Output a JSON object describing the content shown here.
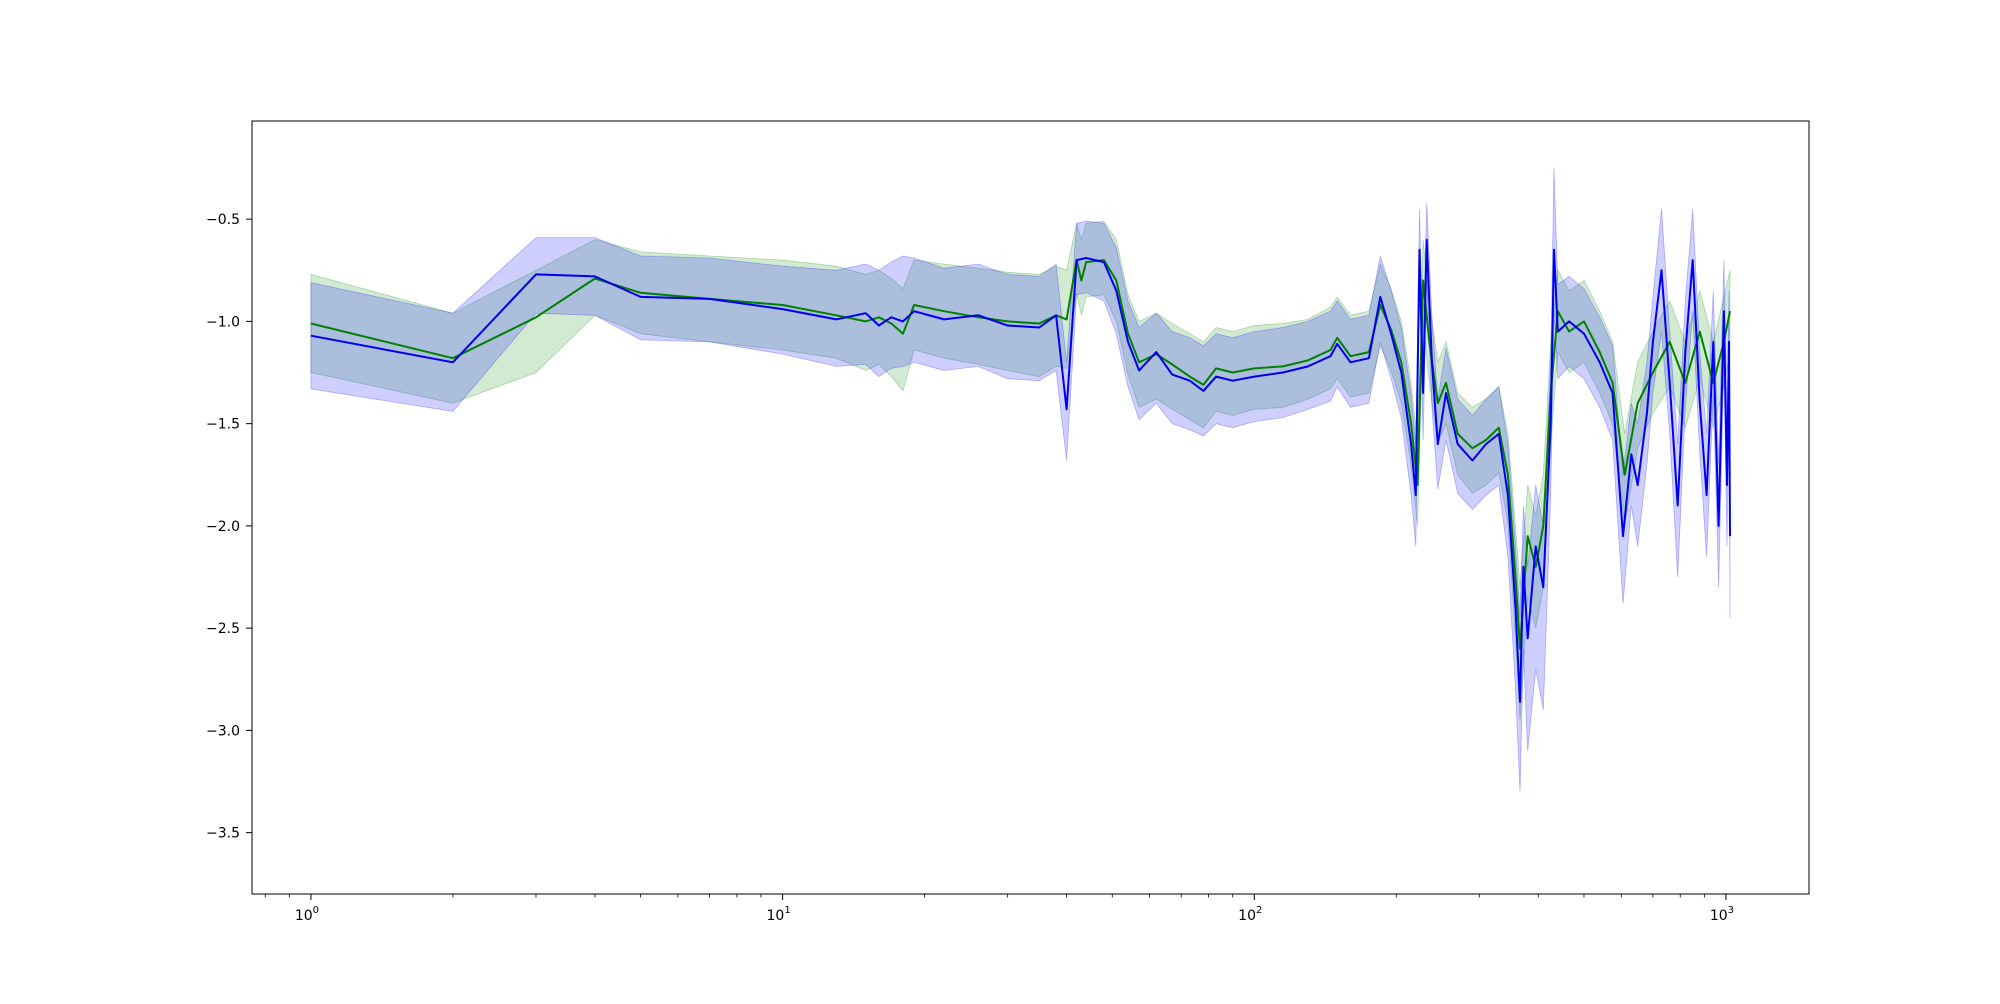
{
  "chart_data": {
    "type": "line",
    "title": "",
    "xlabel": "",
    "ylabel": "",
    "xscale": "log",
    "xlim": [
      0.75,
      1500
    ],
    "ylim": [
      -3.8,
      -0.02
    ],
    "grid": false,
    "legend": "none",
    "x_ticks": [
      {
        "value": 1,
        "base": "10",
        "exp": "0"
      },
      {
        "value": 10,
        "base": "10",
        "exp": "1"
      },
      {
        "value": 100,
        "base": "10",
        "exp": "2"
      },
      {
        "value": 1000,
        "base": "10",
        "exp": "3"
      }
    ],
    "y_ticks": [
      {
        "value": -0.5,
        "label": "−0.5"
      },
      {
        "value": -1.0,
        "label": "−1.0"
      },
      {
        "value": -1.5,
        "label": "−1.5"
      },
      {
        "value": -2.0,
        "label": "−2.0"
      },
      {
        "value": -2.5,
        "label": "−2.5"
      },
      {
        "value": -3.0,
        "label": "−3.0"
      },
      {
        "value": -3.5,
        "label": "−3.5"
      }
    ],
    "series": [
      {
        "color": "#008000",
        "band_color": "#2ca02c",
        "band_opacity": 0.22,
        "points": [
          [
            1,
            -1.01,
            -0.77,
            -1.25
          ],
          [
            2,
            -1.18,
            -0.96,
            -1.4
          ],
          [
            3,
            -0.98,
            -0.75,
            -1.25
          ],
          [
            4,
            -0.79,
            -0.6,
            -0.97
          ],
          [
            5,
            -0.86,
            -0.66,
            -1.06
          ],
          [
            7,
            -0.89,
            -0.68,
            -1.1
          ],
          [
            10,
            -0.92,
            -0.7,
            -1.14
          ],
          [
            13,
            -0.97,
            -0.73,
            -1.18
          ],
          [
            15,
            -1.0,
            -0.77,
            -1.24
          ],
          [
            16,
            -0.98,
            -0.75,
            -1.21
          ],
          [
            17,
            -1.01,
            -0.79,
            -1.27
          ],
          [
            18,
            -1.06,
            -0.84,
            -1.34
          ],
          [
            19,
            -0.92,
            -0.7,
            -1.14
          ],
          [
            22,
            -0.95,
            -0.72,
            -1.18
          ],
          [
            26,
            -0.98,
            -0.74,
            -1.21
          ],
          [
            30,
            -1.0,
            -0.76,
            -1.24
          ],
          [
            35,
            -1.01,
            -0.77,
            -1.27
          ],
          [
            38,
            -0.97,
            -0.73,
            -1.22
          ],
          [
            40,
            -0.99,
            -0.75,
            -1.23
          ],
          [
            42,
            -0.7,
            -0.52,
            -0.86
          ],
          [
            43,
            -0.8,
            -0.6,
            -0.97
          ],
          [
            44,
            -0.71,
            -0.52,
            -0.88
          ],
          [
            48,
            -0.7,
            -0.51,
            -0.87
          ],
          [
            51,
            -0.8,
            -0.6,
            -1.0
          ],
          [
            54,
            -1.06,
            -0.87,
            -1.26
          ],
          [
            57,
            -1.2,
            -1.0,
            -1.42
          ],
          [
            62,
            -1.16,
            -0.96,
            -1.38
          ],
          [
            67,
            -1.21,
            -1.01,
            -1.43
          ],
          [
            73,
            -1.27,
            -1.06,
            -1.48
          ],
          [
            78,
            -1.31,
            -1.1,
            -1.52
          ],
          [
            83,
            -1.23,
            -1.03,
            -1.44
          ],
          [
            90,
            -1.25,
            -1.05,
            -1.46
          ],
          [
            100,
            -1.23,
            -1.02,
            -1.43
          ],
          [
            115,
            -1.22,
            -1.01,
            -1.42
          ],
          [
            130,
            -1.19,
            -0.99,
            -1.38
          ],
          [
            145,
            -1.14,
            -0.93,
            -1.33
          ],
          [
            150,
            -1.08,
            -0.88,
            -1.28
          ],
          [
            160,
            -1.17,
            -0.97,
            -1.37
          ],
          [
            175,
            -1.15,
            -0.95,
            -1.35
          ],
          [
            185,
            -0.92,
            -0.72,
            -1.12
          ],
          [
            195,
            -1.04,
            -0.84,
            -1.24
          ],
          [
            205,
            -1.2,
            -1.0,
            -1.4
          ],
          [
            215,
            -1.5,
            -1.3,
            -1.7
          ],
          [
            222,
            -1.8,
            -1.6,
            -2.0
          ],
          [
            228,
            -0.8,
            -0.6,
            -1.0
          ],
          [
            235,
            -1.1,
            -0.9,
            -1.3
          ],
          [
            245,
            -1.4,
            -1.2,
            -1.6
          ],
          [
            255,
            -1.3,
            -1.1,
            -1.5
          ],
          [
            270,
            -1.55,
            -1.35,
            -1.75
          ],
          [
            290,
            -1.62,
            -1.42,
            -1.84
          ],
          [
            310,
            -1.58,
            -1.38,
            -1.8
          ],
          [
            330,
            -1.52,
            -1.32,
            -1.74
          ],
          [
            345,
            -1.75,
            -1.55,
            -1.98
          ],
          [
            358,
            -2.25,
            -2.0,
            -2.55
          ],
          [
            366,
            -2.6,
            -2.3,
            -2.95
          ],
          [
            380,
            -2.05,
            -1.8,
            -2.35
          ],
          [
            395,
            -2.2,
            -1.95,
            -2.5
          ],
          [
            410,
            -2.0,
            -1.75,
            -2.3
          ],
          [
            425,
            -1.35,
            -1.1,
            -1.6
          ],
          [
            440,
            -0.95,
            -0.75,
            -1.15
          ],
          [
            465,
            -1.05,
            -0.85,
            -1.25
          ],
          [
            500,
            -1.0,
            -0.8,
            -1.2
          ],
          [
            540,
            -1.15,
            -0.95,
            -1.35
          ],
          [
            575,
            -1.3,
            -1.1,
            -1.5
          ],
          [
            610,
            -1.75,
            -1.55,
            -2.0
          ],
          [
            650,
            -1.4,
            -1.2,
            -1.62
          ],
          [
            700,
            -1.25,
            -1.05,
            -1.45
          ],
          [
            760,
            -1.1,
            -0.9,
            -1.32
          ],
          [
            820,
            -1.3,
            -1.1,
            -1.52
          ],
          [
            880,
            -1.05,
            -0.85,
            -1.28
          ],
          [
            940,
            -1.3,
            -1.1,
            -1.52
          ],
          [
            990,
            -1.1,
            -0.88,
            -1.32
          ],
          [
            1020,
            -0.95,
            -0.75,
            -1.15
          ]
        ]
      },
      {
        "color": "#0000ee",
        "band_color": "#3333ff",
        "band_opacity": 0.24,
        "points": [
          [
            1,
            -1.07,
            -0.81,
            -1.33
          ],
          [
            2,
            -1.2,
            -0.96,
            -1.44
          ],
          [
            3,
            -0.77,
            -0.59,
            -0.96
          ],
          [
            4,
            -0.78,
            -0.59,
            -0.97
          ],
          [
            5,
            -0.88,
            -0.68,
            -1.09
          ],
          [
            7,
            -0.89,
            -0.69,
            -1.1
          ],
          [
            10,
            -0.94,
            -0.73,
            -1.16
          ],
          [
            13,
            -0.99,
            -0.75,
            -1.22
          ],
          [
            15,
            -0.96,
            -0.72,
            -1.21
          ],
          [
            16,
            -1.02,
            -0.75,
            -1.27
          ],
          [
            17,
            -0.98,
            -0.71,
            -1.23
          ],
          [
            18,
            -1.0,
            -0.68,
            -1.22
          ],
          [
            19,
            -0.95,
            -0.69,
            -1.2
          ],
          [
            22,
            -0.99,
            -0.74,
            -1.24
          ],
          [
            26,
            -0.97,
            -0.72,
            -1.22
          ],
          [
            30,
            -1.02,
            -0.77,
            -1.28
          ],
          [
            35,
            -1.03,
            -0.78,
            -1.29
          ],
          [
            38,
            -0.97,
            -0.72,
            -1.24
          ],
          [
            40,
            -1.43,
            -1.2,
            -1.68
          ],
          [
            42,
            -0.7,
            -0.52,
            -0.87
          ],
          [
            44,
            -0.69,
            -0.51,
            -0.86
          ],
          [
            48,
            -0.71,
            -0.52,
            -0.9
          ],
          [
            51,
            -0.85,
            -0.64,
            -1.06
          ],
          [
            54,
            -1.1,
            -0.9,
            -1.32
          ],
          [
            57,
            -1.24,
            -1.03,
            -1.48
          ],
          [
            62,
            -1.15,
            -0.96,
            -1.4
          ],
          [
            67,
            -1.26,
            -1.05,
            -1.5
          ],
          [
            73,
            -1.29,
            -1.08,
            -1.53
          ],
          [
            78,
            -1.34,
            -1.12,
            -1.56
          ],
          [
            83,
            -1.27,
            -1.06,
            -1.5
          ],
          [
            90,
            -1.29,
            -1.08,
            -1.52
          ],
          [
            100,
            -1.27,
            -1.05,
            -1.49
          ],
          [
            115,
            -1.25,
            -1.03,
            -1.47
          ],
          [
            130,
            -1.22,
            -1.0,
            -1.43
          ],
          [
            145,
            -1.17,
            -0.95,
            -1.39
          ],
          [
            150,
            -1.11,
            -0.9,
            -1.32
          ],
          [
            160,
            -1.2,
            -0.99,
            -1.42
          ],
          [
            175,
            -1.18,
            -0.97,
            -1.4
          ],
          [
            185,
            -0.88,
            -0.68,
            -1.1
          ],
          [
            195,
            -1.06,
            -0.85,
            -1.28
          ],
          [
            205,
            -1.25,
            -1.03,
            -1.47
          ],
          [
            215,
            -1.6,
            -1.36,
            -1.85
          ],
          [
            220,
            -1.85,
            -1.6,
            -2.1
          ],
          [
            224,
            -0.65,
            -0.45,
            -0.85
          ],
          [
            228,
            -1.35,
            -1.12,
            -1.58
          ],
          [
            232,
            -0.6,
            -0.42,
            -0.8
          ],
          [
            238,
            -1.2,
            -0.98,
            -1.42
          ],
          [
            245,
            -1.6,
            -1.38,
            -1.82
          ],
          [
            255,
            -1.35,
            -1.13,
            -1.58
          ],
          [
            270,
            -1.6,
            -1.38,
            -1.84
          ],
          [
            290,
            -1.68,
            -1.46,
            -1.92
          ],
          [
            310,
            -1.6,
            -1.38,
            -1.85
          ],
          [
            330,
            -1.55,
            -1.32,
            -1.8
          ],
          [
            345,
            -1.85,
            -1.6,
            -2.15
          ],
          [
            358,
            -2.4,
            -2.1,
            -2.8
          ],
          [
            366,
            -2.86,
            -2.45,
            -3.3
          ],
          [
            372,
            -2.2,
            -1.9,
            -2.6
          ],
          [
            380,
            -2.55,
            -2.2,
            -3.1
          ],
          [
            395,
            -2.1,
            -1.8,
            -2.7
          ],
          [
            410,
            -2.3,
            -2.0,
            -2.9
          ],
          [
            425,
            -1.5,
            -1.2,
            -1.85
          ],
          [
            432,
            -0.65,
            -0.25,
            -0.95
          ],
          [
            440,
            -1.05,
            -0.82,
            -1.28
          ],
          [
            465,
            -1.0,
            -0.78,
            -1.22
          ],
          [
            500,
            -1.06,
            -0.84,
            -1.28
          ],
          [
            540,
            -1.2,
            -0.98,
            -1.42
          ],
          [
            575,
            -1.35,
            -1.12,
            -1.58
          ],
          [
            605,
            -2.05,
            -1.75,
            -2.38
          ],
          [
            630,
            -1.65,
            -1.4,
            -1.9
          ],
          [
            650,
            -1.8,
            -1.5,
            -2.1
          ],
          [
            680,
            -1.45,
            -1.2,
            -1.7
          ],
          [
            700,
            -1.1,
            -0.88,
            -1.35
          ],
          [
            730,
            -0.75,
            -0.45,
            -1.05
          ],
          [
            760,
            -1.3,
            -1.05,
            -1.55
          ],
          [
            790,
            -1.9,
            -1.6,
            -2.25
          ],
          [
            820,
            -1.15,
            -0.9,
            -1.42
          ],
          [
            850,
            -0.7,
            -0.45,
            -0.95
          ],
          [
            880,
            -1.4,
            -1.15,
            -1.65
          ],
          [
            910,
            -1.85,
            -1.55,
            -2.15
          ],
          [
            940,
            -1.1,
            -0.85,
            -1.35
          ],
          [
            965,
            -2.0,
            -1.7,
            -2.3
          ],
          [
            990,
            -0.95,
            -0.7,
            -1.2
          ],
          [
            1005,
            -1.8,
            -1.5,
            -2.1
          ],
          [
            1015,
            -1.1,
            -0.85,
            -1.35
          ],
          [
            1020,
            -2.05,
            -1.7,
            -2.45
          ]
        ]
      }
    ]
  }
}
